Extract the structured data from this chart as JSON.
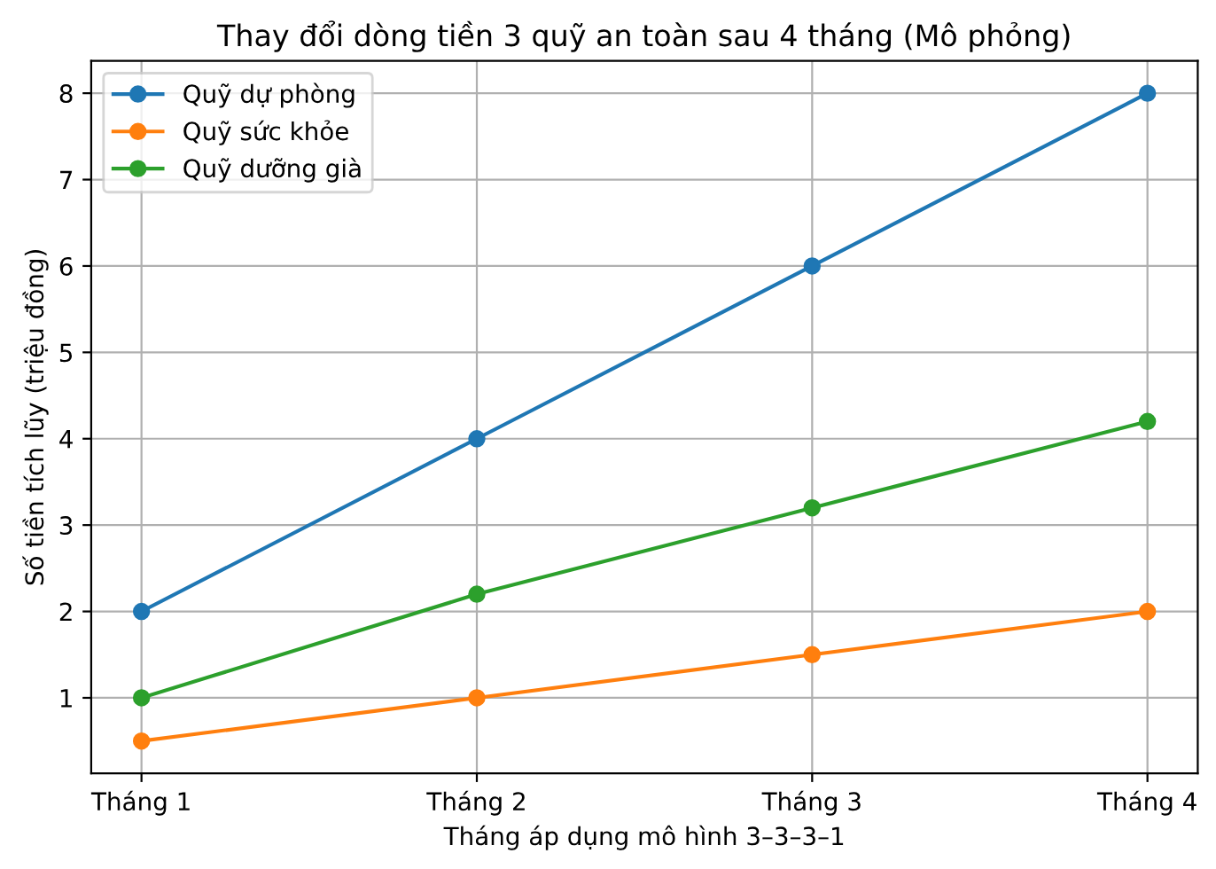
{
  "chart_data": {
    "type": "line",
    "title": "Thay đổi dòng tiền 3 quỹ an toàn sau 4 tháng (Mô phỏng)",
    "xlabel": "Tháng áp dụng mô hình 3–3–3–1",
    "ylabel": "Số tiền tích lũy (triệu đồng)",
    "categories": [
      "Tháng 1",
      "Tháng 2",
      "Tháng 3",
      "Tháng 4"
    ],
    "series": [
      {
        "name": "Quỹ dự phòng",
        "color": "#1f77b4",
        "values": [
          2,
          4,
          6,
          8
        ]
      },
      {
        "name": "Quỹ sức khỏe",
        "color": "#ff7f0e",
        "values": [
          0.5,
          1,
          1.5,
          2
        ]
      },
      {
        "name": "Quỹ dưỡng già",
        "color": "#2ca02c",
        "values": [
          1,
          2.2,
          3.2,
          4.2
        ]
      }
    ],
    "ylim": [
      0.125,
      8.375
    ],
    "yticks": [
      1,
      2,
      3,
      4,
      5,
      6,
      7,
      8
    ],
    "grid": true,
    "legend": "top left",
    "marker": "circle",
    "line_style": "solid"
  }
}
